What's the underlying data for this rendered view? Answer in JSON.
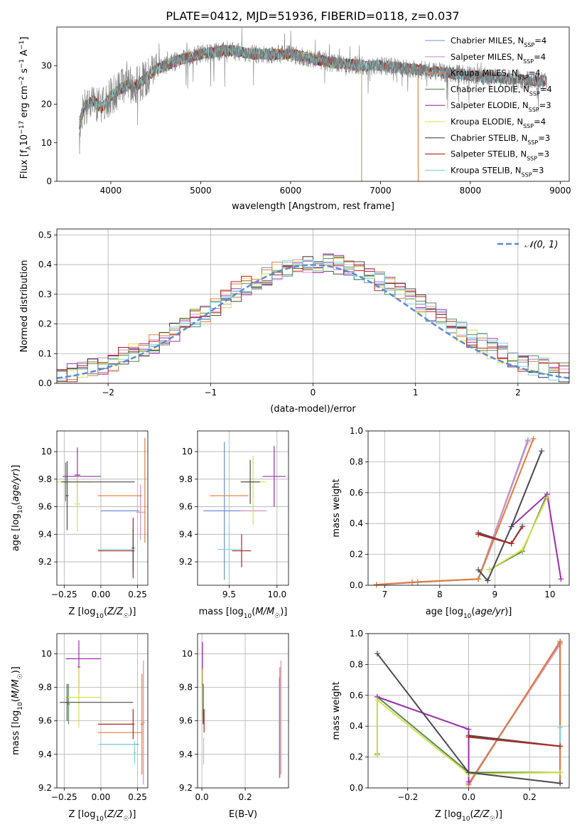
{
  "figure": {
    "title": "PLATE=0412, MJD=51936, FIBERID=0118, z=0.037"
  },
  "chart_data": [
    {
      "id": "spectrum",
      "type": "line",
      "xlabel": "wavelength [Angstrom, rest frame]",
      "ylabel": "Flux [f_λ 10^-17 erg cm^-2 s^-1 A^-1]",
      "xlim": [
        3400,
        9100
      ],
      "ylim": [
        0,
        40
      ],
      "xticks": [
        4000,
        5000,
        6000,
        7000,
        8000,
        9000
      ],
      "yticks": [
        0,
        10,
        20,
        30
      ],
      "grid": false,
      "legend_position": "top-right",
      "continuum": {
        "x": [
          3650,
          3700,
          3800,
          3900,
          4000,
          4100,
          4200,
          4300,
          4400,
          4500,
          4700,
          5000,
          5300,
          5600,
          6000,
          6400,
          6800,
          7000,
          7400,
          7800,
          8200,
          8800
        ],
        "y": [
          15,
          19,
          21,
          19,
          22,
          24,
          25,
          25,
          27,
          29,
          31,
          33,
          34,
          33,
          33,
          31,
          30,
          30,
          29,
          28,
          27,
          26
        ]
      },
      "spectrum_range": [
        3650,
        8850
      ],
      "series": [
        {
          "name": "Chabrier MILES, N_SSP=4",
          "color": "#6a8fd8",
          "end": 8850
        },
        {
          "name": "Salpeter MILES, N_SSP=4",
          "color": "#d88fc6",
          "end": 8850
        },
        {
          "name": "Kroupa MILES, N_SSP=4",
          "color": "#e07b39",
          "end": 7420
        },
        {
          "name": "Chabrier ELODIE, N_SSP=4",
          "color": "#5a8a5a",
          "end": 6790
        },
        {
          "name": "Salpeter ELODIE, N_SSP=3",
          "color": "#9b2fae",
          "end": 6790
        },
        {
          "name": "Kroupa ELODIE, N_SSP=4",
          "color": "#d6e04a",
          "end": 6790
        },
        {
          "name": "Chabrier STELIB, N_SSP=3",
          "color": "#4a4a4a",
          "end": 8850
        },
        {
          "name": "Salpeter STELIB, N_SSP=3",
          "color": "#b22222",
          "end": 8850
        },
        {
          "name": "Kroupa STELIB, N_SSP=3",
          "color": "#7fd8d8",
          "end": 8850
        }
      ],
      "data_color": "#7f7f7f"
    },
    {
      "id": "residuals",
      "type": "line",
      "xlabel": "(data-model)/error",
      "ylabel": "Normed distribution",
      "xlim": [
        -2.5,
        2.5
      ],
      "ylim": [
        0,
        0.52
      ],
      "xticks": [
        -2,
        -1,
        0,
        1,
        2
      ],
      "xtick_labels": [
        "−2",
        "−1",
        "0",
        "1",
        "2"
      ],
      "yticks": [
        0.0,
        0.1,
        0.2,
        0.3,
        0.4,
        0.5
      ],
      "ytick_labels": [
        "0.0",
        "0.1",
        "0.2",
        "0.3",
        "0.4",
        "0.5"
      ],
      "grid": true,
      "legend_position": "top-right",
      "gaussian": {
        "name": "𝒩(0, 1)",
        "color": "#5b8bd0"
      },
      "histogram_bin_width": 0.1
    },
    {
      "id": "age-vs-Z",
      "type": "scatter",
      "xlabel": "Z [log10(Z/Z☉)]",
      "ylabel": "age [log10(age/yr)]",
      "xlim": [
        -0.3,
        0.32
      ],
      "ylim": [
        9.03,
        10.15
      ],
      "xticks": [
        -0.25,
        0.0,
        0.25
      ],
      "xtick_labels": [
        "−0.25",
        "0.00",
        "0.25"
      ],
      "yticks": [
        9.2,
        9.4,
        9.6,
        9.8,
        10.0
      ],
      "grid": true,
      "points": [
        {
          "x": 0.13,
          "xerr": 0.13,
          "y": 9.57,
          "yerr": 0.0,
          "color": "#6a8fd8"
        },
        {
          "x": 0.27,
          "xerr": 0.03,
          "y": 9.56,
          "yerr": 0.2,
          "color": "#d88fc6"
        },
        {
          "x": 0.13,
          "xerr": 0.15,
          "y": 9.68,
          "yerr": 0.0,
          "color": "#e07b39"
        },
        {
          "x": 0.3,
          "xerr": 0.0,
          "y": 9.72,
          "yerr": 0.38,
          "color": "#e07b39"
        },
        {
          "x": -0.24,
          "xerr": 0.02,
          "y": 9.78,
          "yerr": 0.14,
          "color": "#5a8a5a"
        },
        {
          "x": -0.13,
          "xerr": 0.13,
          "y": 9.82,
          "yerr": 0.0,
          "color": "#9b2fae"
        },
        {
          "x": -0.16,
          "xerr": 0.02,
          "y": 9.83,
          "yerr": 0.2,
          "color": "#9b2fae"
        },
        {
          "x": -0.18,
          "xerr": 0.12,
          "y": 9.78,
          "yerr": 0.0,
          "color": "#d6e04a"
        },
        {
          "x": -0.16,
          "xerr": 0.02,
          "y": 9.62,
          "yerr": 0.2,
          "color": "#d6e04a"
        },
        {
          "x": -0.02,
          "xerr": 0.25,
          "y": 9.78,
          "yerr": 0.0,
          "color": "#4a4a4a"
        },
        {
          "x": -0.23,
          "xerr": 0.01,
          "y": 9.68,
          "yerr": 0.25,
          "color": "#4a4a4a"
        },
        {
          "x": 0.1,
          "xerr": 0.12,
          "y": 9.28,
          "yerr": 0.0,
          "color": "#b22222"
        },
        {
          "x": 0.22,
          "xerr": 0.01,
          "y": 9.3,
          "yerr": 0.22,
          "color": "#b22222"
        },
        {
          "x": 0.22,
          "xerr": 0.01,
          "y": 9.28,
          "yerr": 0.16,
          "color": "#4a4a4a"
        },
        {
          "x": 0.1,
          "xerr": 0.12,
          "y": 9.29,
          "yerr": 0.0,
          "color": "#7fd8d8"
        }
      ]
    },
    {
      "id": "age-vs-mass",
      "type": "scatter",
      "xlabel": "mass [log10(M/M☉)]",
      "ylabel": "",
      "xlim": [
        9.17,
        10.12
      ],
      "ylim": [
        9.03,
        10.15
      ],
      "xticks": [
        9.5,
        10.0
      ],
      "xtick_labels": [
        "9.5",
        "10.0"
      ],
      "yticks": [
        9.2,
        9.4,
        9.6,
        9.8,
        10.0
      ],
      "grid": true,
      "points": [
        {
          "x": 9.45,
          "xerr": 0.22,
          "y": 9.57,
          "yerr": 0.5,
          "color": "#6a8fd8"
        },
        {
          "x": 9.75,
          "xerr": 0.14,
          "y": 9.57,
          "yerr": 0.0,
          "color": "#d88fc6"
        },
        {
          "x": 9.5,
          "xerr": 0.2,
          "y": 9.68,
          "yerr": 0.0,
          "color": "#e07b39"
        },
        {
          "x": 9.75,
          "xerr": 0.08,
          "y": 9.78,
          "yerr": 0.0,
          "color": "#5a8a5a"
        },
        {
          "x": 9.97,
          "xerr": 0.12,
          "y": 9.82,
          "yerr": 0.22,
          "color": "#9b2fae"
        },
        {
          "x": 9.75,
          "xerr": 0.0,
          "y": 9.72,
          "yerr": 0.25,
          "color": "#d6e04a"
        },
        {
          "x": 9.75,
          "xerr": 0.13,
          "y": 9.78,
          "yerr": 0.0,
          "color": "#d6e04a"
        },
        {
          "x": 9.72,
          "xerr": 0.1,
          "y": 9.78,
          "yerr": 0.16,
          "color": "#4a4a4a"
        },
        {
          "x": 9.63,
          "xerr": 0.1,
          "y": 9.28,
          "yerr": 0.12,
          "color": "#b22222"
        },
        {
          "x": 9.5,
          "xerr": 0.12,
          "y": 9.29,
          "yerr": 0.2,
          "color": "#7fd8d8"
        }
      ]
    },
    {
      "id": "mass-weight-vs-age",
      "type": "line",
      "xlabel": "age [log10(age/yr)]",
      "ylabel": "mass weight",
      "xlim": [
        6.7,
        10.35
      ],
      "ylim": [
        0,
        1
      ],
      "xticks": [
        7,
        8,
        9,
        10
      ],
      "yticks": [
        0.0,
        0.2,
        0.4,
        0.6,
        0.8,
        1.0
      ],
      "ytick_labels": [
        "0.0",
        "0.2",
        "0.4",
        "0.6",
        "0.8",
        "1.0"
      ],
      "grid": true,
      "series": [
        {
          "color": "#6a8fd8",
          "x": [
            6.85,
            7.6,
            8.7,
            9.6
          ],
          "y": [
            0.003,
            0.02,
            0.04,
            0.94
          ]
        },
        {
          "color": "#d88fc6",
          "x": [
            6.85,
            7.5,
            8.7,
            9.6
          ],
          "y": [
            0.003,
            0.02,
            0.04,
            0.93
          ]
        },
        {
          "color": "#e07b39",
          "x": [
            6.85,
            7.5,
            8.7,
            9.7
          ],
          "y": [
            0.003,
            0.02,
            0.04,
            0.95
          ]
        },
        {
          "color": "#5a8a5a",
          "x": [
            8.9,
            9.5,
            9.95
          ],
          "y": [
            0.1,
            0.22,
            0.59
          ]
        },
        {
          "color": "#9b2fae",
          "x": [
            9.3,
            9.95,
            10.2
          ],
          "y": [
            0.38,
            0.59,
            0.04
          ]
        },
        {
          "color": "#d6e04a",
          "x": [
            8.9,
            9.5,
            9.95
          ],
          "y": [
            0.1,
            0.23,
            0.57
          ]
        },
        {
          "color": "#4a4a4a",
          "x": [
            8.7,
            8.87,
            9.3,
            9.85
          ],
          "y": [
            0.1,
            0.03,
            0.38,
            0.87
          ]
        },
        {
          "color": "#4a4a4a",
          "x": [
            8.7,
            9.3
          ],
          "y": [
            0.34,
            0.27
          ]
        },
        {
          "color": "#7fd8d8",
          "x": [
            8.7,
            9.3,
            9.5
          ],
          "y": [
            0.33,
            0.27,
            0.39
          ]
        },
        {
          "color": "#b22222",
          "x": [
            8.7,
            9.3,
            9.5
          ],
          "y": [
            0.33,
            0.27,
            0.38
          ]
        }
      ]
    },
    {
      "id": "mass-vs-Z",
      "type": "scatter",
      "xlabel": "Z [log10(Z/Z☉)]",
      "ylabel": "mass [log10(M/M☉)]",
      "xlim": [
        -0.3,
        0.32
      ],
      "ylim": [
        9.2,
        10.12
      ],
      "xticks": [
        -0.25,
        0.0,
        0.25
      ],
      "xtick_labels": [
        "−0.25",
        "0.00",
        "0.25"
      ],
      "yticks": [
        9.2,
        9.4,
        9.6,
        9.8,
        10.0
      ],
      "grid": true,
      "points": [
        {
          "x": 0.13,
          "xerr": 0.13,
          "y": 9.46,
          "yerr": 0.0,
          "color": "#6a8fd8"
        },
        {
          "x": 0.29,
          "xerr": 0.01,
          "y": 9.59,
          "yerr": 0.37,
          "color": "#d88fc6"
        },
        {
          "x": 0.13,
          "xerr": 0.15,
          "y": 9.53,
          "yerr": 0.0,
          "color": "#e07b39"
        },
        {
          "x": 0.28,
          "xerr": 0.01,
          "y": 9.58,
          "yerr": 0.3,
          "color": "#e07b39"
        },
        {
          "x": -0.22,
          "xerr": 0.01,
          "y": 9.7,
          "yerr": 0.12,
          "color": "#5a8a5a"
        },
        {
          "x": -0.12,
          "xerr": 0.12,
          "y": 9.97,
          "yerr": 0.0,
          "color": "#9b2fae"
        },
        {
          "x": -0.15,
          "xerr": 0.01,
          "y": 9.92,
          "yerr": 0.16,
          "color": "#9b2fae"
        },
        {
          "x": -0.12,
          "xerr": 0.12,
          "y": 9.74,
          "yerr": 0.0,
          "color": "#d6e04a"
        },
        {
          "x": -0.15,
          "xerr": 0.01,
          "y": 9.74,
          "yerr": 0.18,
          "color": "#d6e04a"
        },
        {
          "x": -0.03,
          "xerr": 0.25,
          "y": 9.71,
          "yerr": 0.0,
          "color": "#4a4a4a"
        },
        {
          "x": -0.23,
          "xerr": 0.01,
          "y": 9.71,
          "yerr": 0.11,
          "color": "#4a4a4a"
        },
        {
          "x": 0.1,
          "xerr": 0.12,
          "y": 9.58,
          "yerr": 0.0,
          "color": "#b22222"
        },
        {
          "x": 0.22,
          "xerr": 0.01,
          "y": 9.58,
          "yerr": 0.09,
          "color": "#b22222"
        },
        {
          "x": 0.1,
          "xerr": 0.12,
          "y": 9.46,
          "yerr": 0.0,
          "color": "#7fd8d8"
        },
        {
          "x": 0.23,
          "xerr": 0.01,
          "y": 9.41,
          "yerr": 0.07,
          "color": "#7fd8d8"
        }
      ]
    },
    {
      "id": "mass-vs-ebv",
      "type": "scatter",
      "xlabel": "E(B-V)",
      "ylabel": "",
      "xlim": [
        -0.02,
        0.4
      ],
      "ylim": [
        9.2,
        10.12
      ],
      "xticks": [
        0.0,
        0.2
      ],
      "xtick_labels": [
        "0.0",
        "0.2"
      ],
      "yticks": [
        9.2,
        9.4,
        9.6,
        9.8,
        10.0
      ],
      "grid": true,
      "points": [
        {
          "x": 0.005,
          "xerr": 0.0,
          "y": 9.72,
          "yerr": 0.1,
          "color": "#5a8a5a"
        },
        {
          "x": 0.003,
          "xerr": 0.0,
          "y": 9.94,
          "yerr": 0.13,
          "color": "#9b2fae"
        },
        {
          "x": 0.004,
          "xerr": 0.0,
          "y": 9.76,
          "yerr": 0.15,
          "color": "#d6e04a"
        },
        {
          "x": 0.006,
          "xerr": 0.0,
          "y": 9.7,
          "yerr": 0.12,
          "color": "#4a4a4a"
        },
        {
          "x": 0.01,
          "xerr": 0.0,
          "y": 9.6,
          "yerr": 0.07,
          "color": "#b22222"
        },
        {
          "x": 0.008,
          "xerr": 0.0,
          "y": 9.42,
          "yerr": 0.08,
          "color": "#7fd8d8"
        },
        {
          "x": 0.36,
          "xerr": 0.0,
          "y": 9.59,
          "yerr": 0.33,
          "color": "#e07b39"
        },
        {
          "x": 0.365,
          "xerr": 0.0,
          "y": 9.62,
          "yerr": 0.34,
          "color": "#d88fc6"
        },
        {
          "x": 0.358,
          "xerr": 0.0,
          "y": 9.56,
          "yerr": 0.3,
          "color": "#6a8fd8"
        }
      ]
    },
    {
      "id": "mass-weight-vs-Z",
      "type": "line",
      "xlabel": "Z [log10(Z/Z☉)]",
      "ylabel": "mass weight",
      "xlim": [
        -0.33,
        0.33
      ],
      "ylim": [
        0,
        1
      ],
      "xticks": [
        -0.2,
        0.0,
        0.2
      ],
      "xtick_labels": [
        "−0.2",
        "0.0",
        "0.2"
      ],
      "yticks": [
        0.0,
        0.2,
        0.4,
        0.6,
        0.8,
        1.0
      ],
      "ytick_labels": [
        "0.0",
        "0.2",
        "0.4",
        "0.6",
        "0.8",
        "1.0"
      ],
      "grid": true,
      "series": [
        {
          "color": "#6a8fd8",
          "x": [
            0.0,
            0.3,
            0.3
          ],
          "y": [
            0.03,
            0.94,
            0.03
          ]
        },
        {
          "color": "#d88fc6",
          "x": [
            0.0,
            0.3,
            0.3
          ],
          "y": [
            0.03,
            0.93,
            0.03
          ]
        },
        {
          "color": "#e07b39",
          "x": [
            0.0,
            0.3,
            0.3
          ],
          "y": [
            0.02,
            0.95,
            0.03
          ]
        },
        {
          "color": "#5a8a5a",
          "x": [
            -0.3,
            -0.3,
            0.0,
            0.3
          ],
          "y": [
            0.22,
            0.59,
            0.1,
            0.1
          ]
        },
        {
          "color": "#9b2fae",
          "x": [
            -0.3,
            0.0,
            0.0
          ],
          "y": [
            0.59,
            0.38,
            0.04
          ]
        },
        {
          "color": "#d6e04a",
          "x": [
            -0.3,
            -0.3,
            0.0,
            0.3
          ],
          "y": [
            0.21,
            0.57,
            0.09,
            0.1
          ]
        },
        {
          "color": "#4a4a4a",
          "x": [
            -0.3,
            0.0,
            0.3
          ],
          "y": [
            0.87,
            0.1,
            0.03
          ]
        },
        {
          "color": "#4a4a4a",
          "x": [
            0.0,
            0.3
          ],
          "y": [
            0.34,
            0.27
          ]
        },
        {
          "color": "#7fd8d8",
          "x": [
            0.0,
            0.3,
            0.3
          ],
          "y": [
            0.33,
            0.27,
            0.39
          ]
        },
        {
          "color": "#b22222",
          "x": [
            0.0,
            0.3
          ],
          "y": [
            0.33,
            0.27
          ]
        }
      ]
    }
  ]
}
